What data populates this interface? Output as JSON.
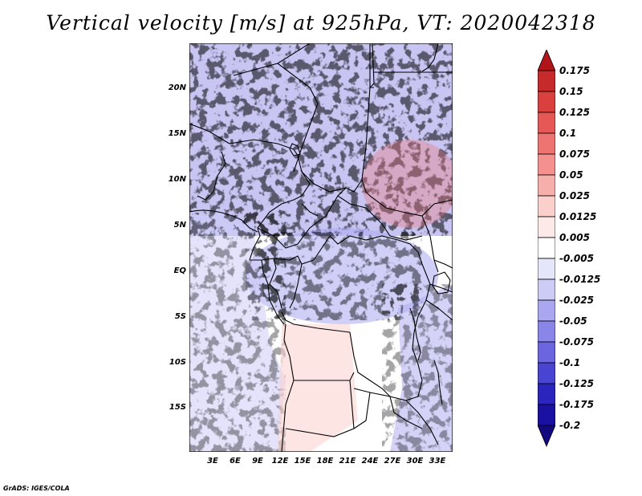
{
  "title": "Vertical velocity [m/s] at 925hPa, VT: 2020042318",
  "map": {
    "lon_labels": [
      "3E",
      "6E",
      "9E",
      "12E",
      "15E",
      "18E",
      "21E",
      "24E",
      "27E",
      "30E",
      "33E"
    ],
    "lat_labels": [
      "20N",
      "15N",
      "10N",
      "5N",
      "EQ",
      "5S",
      "10S",
      "15S"
    ]
  },
  "colorbar": {
    "labels": [
      "0.175",
      "0.15",
      "0.125",
      "0.1",
      "0.075",
      "0.05",
      "0.025",
      "0.0125",
      "0.005",
      "-0.005",
      "-0.0125",
      "-0.025",
      "-0.05",
      "-0.075",
      "-0.1",
      "-0.125",
      "-0.175",
      "-0.2"
    ],
    "colors": [
      "#b1151a",
      "#c72a2a",
      "#d9403e",
      "#e65855",
      "#ee7472",
      "#f4918e",
      "#f7afab",
      "#fbcfcc",
      "#fde9e7",
      "#ffffff",
      "#e6e6fb",
      "#cdccf7",
      "#aaa7f0",
      "#8a86e9",
      "#6b66e0",
      "#4a44d2",
      "#2c25bd",
      "#1a10a2",
      "#14087f"
    ]
  },
  "credit": "GrADS: IGES/COLA"
}
